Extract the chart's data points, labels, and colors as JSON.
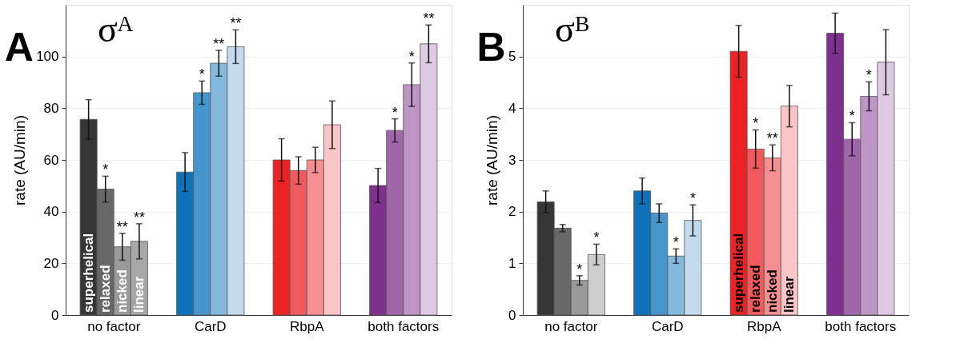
{
  "chart_data": [
    {
      "type": "bar",
      "title": "A",
      "ylabel": "rate (AU/min)",
      "categories": [
        "no factor",
        "CarD",
        "RbpA",
        "both factors"
      ],
      "ylim": [
        0,
        120
      ],
      "yticks": [
        0,
        20,
        40,
        60,
        80,
        100
      ],
      "grid": "y",
      "series": [
        {
          "colors": [
            "#363636",
            "#0f72b8",
            "#ed2224",
            "#7f2f8d"
          ],
          "values": [
            75.7,
            55.3,
            60.0,
            50.1
          ],
          "errors": [
            7.6,
            7.5,
            8.2,
            6.6
          ]
        },
        {
          "colors": [
            "#686868",
            "#4596cf",
            "#f2595c",
            "#a066aa"
          ],
          "values": [
            48.7,
            86.0,
            55.9,
            71.4
          ],
          "errors": [
            5.0,
            4.5,
            5.3,
            4.5
          ],
          "value_labels": [
            "*",
            "*",
            null,
            "*"
          ]
        },
        {
          "colors": [
            "#9a9a9a",
            "#84b9dd",
            "#f58f91",
            "#bf95c6"
          ],
          "values": [
            26.4,
            97.4,
            60.0,
            89.1
          ],
          "errors": [
            5.2,
            5.0,
            4.9,
            8.4
          ],
          "value_labels": [
            "**",
            "**",
            null,
            "*"
          ]
        },
        {
          "colors": [
            "#a8a8a8",
            "#c4dbee",
            "#f9c5c7",
            "#dfcae3"
          ],
          "values": [
            28.5,
            103.8,
            73.6,
            104.9
          ],
          "errors": [
            6.8,
            6.5,
            9.2,
            7.3
          ],
          "value_labels": [
            "**",
            "**",
            null,
            "**"
          ]
        }
      ],
      "annotations": [
        "σᴬ",
        {
          "text": "superhelical",
          "x": "no factor",
          "y": 0
        },
        {
          "text": "relaxed",
          "x": "no factor",
          "y": 0
        },
        {
          "text": "nicked",
          "x": "no factor",
          "y": 0
        },
        {
          "text": "linear",
          "x": "no factor",
          "y": 0
        }
      ]
    },
    {
      "type": "bar",
      "title": "B",
      "ylabel": "rate (AU/min)",
      "categories": [
        "no factor",
        "CarD",
        "RbpA",
        "both factors"
      ],
      "ylim": [
        0,
        6
      ],
      "yticks": [
        0,
        1,
        2,
        3,
        4,
        5
      ],
      "grid": "y",
      "series": [
        {
          "colors": [
            "#363636",
            "#0f72b8",
            "#ed2224",
            "#7f2f8d"
          ],
          "values": [
            2.19,
            2.4,
            5.1,
            5.45
          ],
          "errors": [
            0.21,
            0.25,
            0.5,
            0.39
          ]
        },
        {
          "colors": [
            "#686868",
            "#4596cf",
            "#f2595c",
            "#a066aa"
          ],
          "values": [
            1.68,
            1.97,
            3.21,
            3.4
          ],
          "errors": [
            0.07,
            0.18,
            0.37,
            0.32
          ],
          "value_labels": [
            null,
            null,
            "*",
            "*"
          ]
        },
        {
          "colors": [
            "#9a9a9a",
            "#84b9dd",
            "#f58f91",
            "#bf95c6"
          ],
          "values": [
            0.67,
            1.14,
            3.04,
            4.23
          ],
          "errors": [
            0.09,
            0.14,
            0.25,
            0.28
          ],
          "value_labels": [
            "*",
            "*",
            "**",
            "*"
          ]
        },
        {
          "colors": [
            "#cdcdcd",
            "#c4dbee",
            "#f9c5c7",
            "#dfcae3"
          ],
          "values": [
            1.17,
            1.83,
            4.04,
            4.89
          ],
          "errors": [
            0.2,
            0.3,
            0.4,
            0.63
          ],
          "value_labels": [
            "*",
            "*",
            null,
            null
          ]
        }
      ],
      "annotations": [
        "σᴮ",
        {
          "text": "superhelical",
          "x": "RbpA",
          "y": 0
        },
        {
          "text": "relaxed",
          "x": "RbpA",
          "y": 0
        },
        {
          "text": "nicked",
          "x": "RbpA",
          "y": 0
        },
        {
          "text": "linear",
          "x": "RbpA",
          "y": 0
        }
      ]
    }
  ]
}
